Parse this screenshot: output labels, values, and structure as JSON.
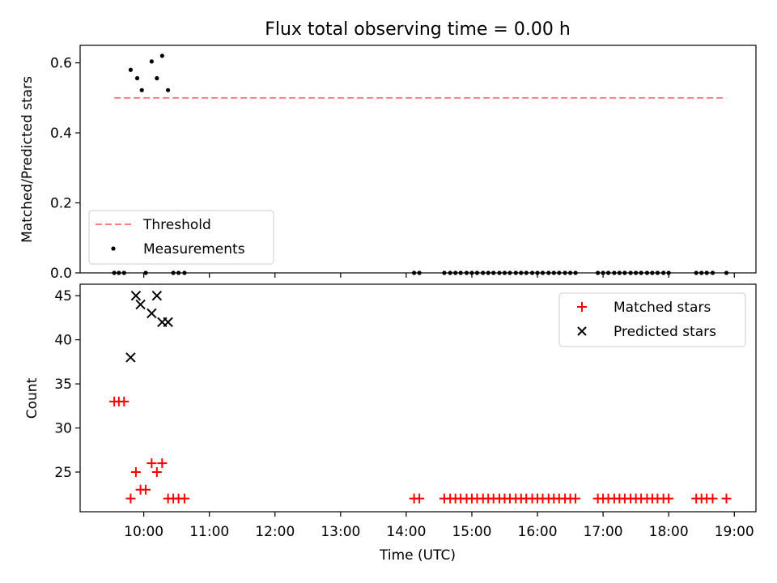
{
  "chart_data": [
    {
      "type": "scatter",
      "title": "Flux total observing time = 0.00 h",
      "xlabel": "",
      "ylabel": "Matched/Predicted stars",
      "ylim": [
        0.0,
        0.65
      ],
      "yticks": [
        0.0,
        0.2,
        0.4,
        0.6
      ],
      "ytick_labels": [
        "0.0",
        "0.2",
        "0.4",
        "0.6"
      ],
      "xlim_hours": [
        9.03,
        19.33
      ],
      "legend_position": "lower-left",
      "threshold": {
        "name": "Threshold",
        "y": 0.5,
        "x_range_hours": [
          9.55,
          18.88
        ],
        "color": "#ff7f7f",
        "style": "dashed"
      },
      "series": [
        {
          "name": "Measurements",
          "marker": "dot",
          "color": "#000000",
          "points": [
            [
              9.8,
              0.58
            ],
            [
              9.9,
              0.556
            ],
            [
              9.97,
              0.522
            ],
            [
              10.12,
              0.604
            ],
            [
              10.2,
              0.556
            ],
            [
              10.28,
              0.62
            ],
            [
              10.37,
              0.522
            ],
            [
              9.55,
              0
            ],
            [
              9.62,
              0
            ],
            [
              9.7,
              0
            ],
            [
              10.03,
              0
            ],
            [
              10.45,
              0
            ],
            [
              10.53,
              0
            ],
            [
              10.62,
              0
            ],
            [
              14.12,
              0
            ],
            [
              14.2,
              0
            ],
            [
              14.58,
              0
            ],
            [
              14.67,
              0
            ],
            [
              14.75,
              0
            ],
            [
              14.83,
              0
            ],
            [
              14.92,
              0
            ],
            [
              15.0,
              0
            ],
            [
              15.08,
              0
            ],
            [
              15.17,
              0
            ],
            [
              15.25,
              0
            ],
            [
              15.33,
              0
            ],
            [
              15.42,
              0
            ],
            [
              15.5,
              0
            ],
            [
              15.58,
              0
            ],
            [
              15.67,
              0
            ],
            [
              15.75,
              0
            ],
            [
              15.83,
              0
            ],
            [
              15.92,
              0
            ],
            [
              16.0,
              0
            ],
            [
              16.08,
              0
            ],
            [
              16.17,
              0
            ],
            [
              16.25,
              0
            ],
            [
              16.33,
              0
            ],
            [
              16.42,
              0
            ],
            [
              16.5,
              0
            ],
            [
              16.58,
              0
            ],
            [
              16.92,
              0
            ],
            [
              17.0,
              0
            ],
            [
              17.08,
              0
            ],
            [
              17.17,
              0
            ],
            [
              17.25,
              0
            ],
            [
              17.33,
              0
            ],
            [
              17.42,
              0
            ],
            [
              17.5,
              0
            ],
            [
              17.58,
              0
            ],
            [
              17.67,
              0
            ],
            [
              17.75,
              0
            ],
            [
              17.83,
              0
            ],
            [
              17.92,
              0
            ],
            [
              18.0,
              0
            ],
            [
              18.42,
              0
            ],
            [
              18.5,
              0
            ],
            [
              18.58,
              0
            ],
            [
              18.67,
              0
            ],
            [
              18.88,
              0
            ]
          ]
        }
      ]
    },
    {
      "type": "scatter",
      "title": "",
      "xlabel": "Time (UTC)",
      "ylabel": "Count",
      "ylim": [
        20.5,
        46.3
      ],
      "yticks": [
        25,
        30,
        35,
        40,
        45
      ],
      "ytick_labels": [
        "25",
        "30",
        "35",
        "40",
        "45"
      ],
      "xlim_hours": [
        9.03,
        19.33
      ],
      "xticks_hours": [
        10,
        11,
        12,
        13,
        14,
        15,
        16,
        17,
        18,
        19
      ],
      "xtick_labels": [
        "10:00",
        "11:00",
        "12:00",
        "13:00",
        "14:00",
        "15:00",
        "16:00",
        "17:00",
        "18:00",
        "19:00"
      ],
      "legend_position": "upper-right",
      "series": [
        {
          "name": "Matched stars",
          "marker": "plus",
          "color": "#ff0000",
          "points": [
            [
              9.55,
              33
            ],
            [
              9.62,
              33
            ],
            [
              9.7,
              33
            ],
            [
              9.8,
              22
            ],
            [
              9.88,
              25
            ],
            [
              9.95,
              23
            ],
            [
              10.03,
              23
            ],
            [
              10.12,
              26
            ],
            [
              10.2,
              25
            ],
            [
              10.28,
              26
            ],
            [
              10.37,
              22
            ],
            [
              10.45,
              22
            ],
            [
              10.53,
              22
            ],
            [
              10.62,
              22
            ],
            [
              14.12,
              22
            ],
            [
              14.2,
              22
            ],
            [
              14.58,
              22
            ],
            [
              14.67,
              22
            ],
            [
              14.75,
              22
            ],
            [
              14.83,
              22
            ],
            [
              14.92,
              22
            ],
            [
              15.0,
              22
            ],
            [
              15.08,
              22
            ],
            [
              15.17,
              22
            ],
            [
              15.25,
              22
            ],
            [
              15.33,
              22
            ],
            [
              15.42,
              22
            ],
            [
              15.5,
              22
            ],
            [
              15.58,
              22
            ],
            [
              15.67,
              22
            ],
            [
              15.75,
              22
            ],
            [
              15.83,
              22
            ],
            [
              15.92,
              22
            ],
            [
              16.0,
              22
            ],
            [
              16.08,
              22
            ],
            [
              16.17,
              22
            ],
            [
              16.25,
              22
            ],
            [
              16.33,
              22
            ],
            [
              16.42,
              22
            ],
            [
              16.5,
              22
            ],
            [
              16.58,
              22
            ],
            [
              16.92,
              22
            ],
            [
              17.0,
              22
            ],
            [
              17.08,
              22
            ],
            [
              17.17,
              22
            ],
            [
              17.25,
              22
            ],
            [
              17.33,
              22
            ],
            [
              17.42,
              22
            ],
            [
              17.5,
              22
            ],
            [
              17.58,
              22
            ],
            [
              17.67,
              22
            ],
            [
              17.75,
              22
            ],
            [
              17.83,
              22
            ],
            [
              17.92,
              22
            ],
            [
              18.0,
              22
            ],
            [
              18.42,
              22
            ],
            [
              18.5,
              22
            ],
            [
              18.58,
              22
            ],
            [
              18.67,
              22
            ],
            [
              18.88,
              22
            ]
          ]
        },
        {
          "name": "Predicted stars",
          "marker": "x",
          "color": "#000000",
          "points": [
            [
              9.8,
              38
            ],
            [
              9.88,
              45
            ],
            [
              9.95,
              44
            ],
            [
              10.12,
              43
            ],
            [
              10.2,
              45
            ],
            [
              10.28,
              42
            ],
            [
              10.37,
              42
            ]
          ]
        }
      ]
    }
  ]
}
